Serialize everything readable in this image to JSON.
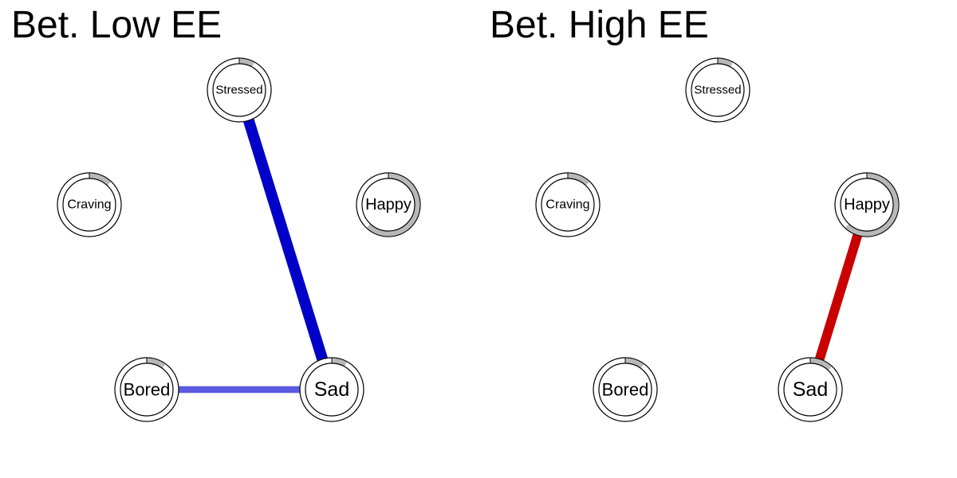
{
  "panels": [
    {
      "title": "Bet. Low EE",
      "nodes": [
        {
          "id": "Stressed",
          "label": "Stressed",
          "pie": 0.08
        },
        {
          "id": "Craving",
          "label": "Craving",
          "pie": 0.12
        },
        {
          "id": "Happy",
          "label": "Happy",
          "pie": 0.62
        },
        {
          "id": "Bored",
          "label": "Bored",
          "pie": 0.1
        },
        {
          "id": "Sad",
          "label": "Sad",
          "pie": 0.08
        }
      ],
      "edges": [
        {
          "from": "Stressed",
          "to": "Sad",
          "color": "#0000c8",
          "weight": 1.0
        },
        {
          "from": "Bored",
          "to": "Sad",
          "color": "#5a5ae0",
          "weight": 0.6
        }
      ]
    },
    {
      "title": "Bet. High EE",
      "nodes": [
        {
          "id": "Stressed",
          "label": "Stressed",
          "pie": 0.08
        },
        {
          "id": "Craving",
          "label": "Craving",
          "pie": 0.12
        },
        {
          "id": "Happy",
          "label": "Happy",
          "pie": 0.62
        },
        {
          "id": "Bored",
          "label": "Bored",
          "pie": 0.1
        },
        {
          "id": "Sad",
          "label": "Sad",
          "pie": 0.12
        }
      ],
      "edges": [
        {
          "from": "Happy",
          "to": "Sad",
          "color": "#c80000",
          "weight": 0.85
        }
      ]
    }
  ],
  "colors": {
    "pie": "#b8b8b8",
    "node_border": "#000000",
    "node_fill": "#ffffff"
  }
}
